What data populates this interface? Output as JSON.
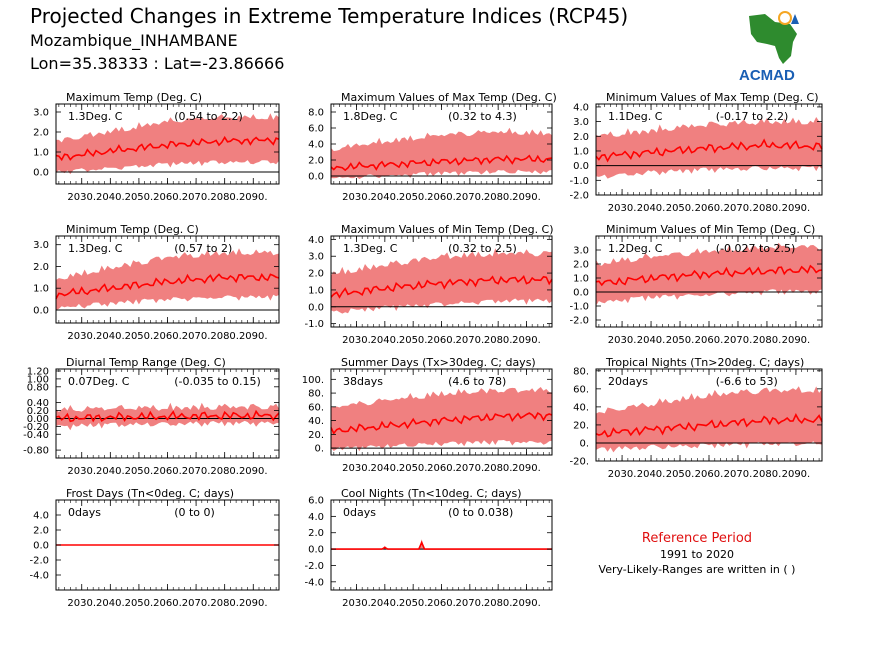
{
  "header": {
    "title": "Projected Changes in Extreme Temperature Indices (RCP45)",
    "region": "Mozambique_INHAMBANE",
    "coords": "Lon=35.38333 : Lat=-23.86666"
  },
  "logo": {
    "text": "ACMAD",
    "icon": "africa-map-icon"
  },
  "reference": {
    "title": "Reference Period",
    "years": "1991 to 2020",
    "note": "Very-Likely-Ranges are written in ( )"
  },
  "colors": {
    "band": "#f08080",
    "line": "#ff0000",
    "logo_green": "#2e8b2e",
    "logo_blue": "#1a5fb4",
    "logo_orange": "#f5a623"
  },
  "chart_data": [
    {
      "type": "line",
      "title": "Maximum Temp (Deg. C)",
      "change": "1.3Deg. C",
      "range": "(0.54 to 2.2)",
      "ylim": [
        -0.6,
        3.4
      ],
      "yticks": [
        0,
        1,
        2,
        3
      ],
      "ytick_labels": [
        "0.0",
        "1.0",
        "2.0",
        "3.0"
      ],
      "x_ticks": [
        "2030.",
        "2040.",
        "2050.",
        "2060.",
        "2070.",
        "2080.",
        "2090."
      ],
      "series": [
        {
          "x": [
            2021,
            2040,
            2060,
            2080,
            2099
          ],
          "values": [
            0.7,
            1.05,
            1.35,
            1.55,
            1.6
          ]
        },
        {
          "x": [
            2021,
            2040,
            2060,
            2080,
            2099
          ],
          "values": [
            0.1,
            0.3,
            0.5,
            0.6,
            0.6
          ]
        },
        {
          "x": [
            2021,
            2040,
            2060,
            2080,
            2099
          ],
          "values": [
            1.4,
            1.9,
            2.4,
            2.6,
            2.6
          ]
        }
      ]
    },
    {
      "type": "line",
      "title": "Maximum Values of Max Temp (Deg. C)",
      "change": "1.8Deg. C",
      "range": "(0.32 to 4.3)",
      "ylim": [
        -1,
        9
      ],
      "yticks": [
        0,
        2,
        4,
        6,
        8
      ],
      "ytick_labels": [
        "0.0",
        "2.0",
        "4.0",
        "6.0",
        "8.0"
      ],
      "x_ticks": [
        "2030.",
        "2040.",
        "2050.",
        "2060.",
        "2070.",
        "2080.",
        "2090."
      ],
      "series": [
        {
          "x": [
            2021,
            2040,
            2060,
            2080,
            2099
          ],
          "values": [
            1.0,
            1.4,
            1.8,
            2.1,
            2.1
          ]
        },
        {
          "x": [
            2021,
            2040,
            2060,
            2080,
            2099
          ],
          "values": [
            0.0,
            0.3,
            0.6,
            0.8,
            0.8
          ]
        },
        {
          "x": [
            2021,
            2040,
            2060,
            2080,
            2099
          ],
          "values": [
            3.0,
            4.0,
            4.8,
            5.2,
            5.0
          ]
        }
      ]
    },
    {
      "type": "line",
      "title": "Minimum Values of Max Temp (Deg. C)",
      "change": "1.1Deg. C",
      "range": "(-0.17 to 2.2)",
      "ylim": [
        -2,
        4.2
      ],
      "yticks": [
        -2,
        -1,
        0,
        1,
        2,
        3,
        4
      ],
      "ytick_labels": [
        "-2.0",
        "-1.0",
        "0.0",
        "1.0",
        "2.0",
        "3.0",
        "4.0"
      ],
      "x_ticks": [
        "2030.",
        "2040.",
        "2050.",
        "2060.",
        "2070.",
        "2080.",
        "2090."
      ],
      "series": [
        {
          "x": [
            2021,
            2040,
            2060,
            2080,
            2099
          ],
          "values": [
            0.6,
            0.9,
            1.2,
            1.4,
            1.3
          ]
        },
        {
          "x": [
            2021,
            2040,
            2060,
            2080,
            2099
          ],
          "values": [
            -0.6,
            -0.3,
            -0.1,
            0.0,
            0.0
          ]
        },
        {
          "x": [
            2021,
            2040,
            2060,
            2080,
            2099
          ],
          "values": [
            1.8,
            2.2,
            2.6,
            2.8,
            2.8
          ]
        }
      ]
    },
    {
      "type": "line",
      "title": "Minimum Temp (Deg. C)",
      "change": "1.3Deg. C",
      "range": "(0.57 to 2)",
      "ylim": [
        -0.6,
        3.4
      ],
      "yticks": [
        0,
        1,
        2,
        3
      ],
      "ytick_labels": [
        "0.0",
        "1.0",
        "2.0",
        "3.0"
      ],
      "x_ticks": [
        "2030.",
        "2040.",
        "2050.",
        "2060.",
        "2070.",
        "2080.",
        "2090."
      ],
      "series": [
        {
          "x": [
            2021,
            2040,
            2060,
            2080,
            2099
          ],
          "values": [
            0.7,
            1.0,
            1.3,
            1.5,
            1.5
          ]
        },
        {
          "x": [
            2021,
            2040,
            2060,
            2080,
            2099
          ],
          "values": [
            0.2,
            0.4,
            0.6,
            0.7,
            0.7
          ]
        },
        {
          "x": [
            2021,
            2040,
            2060,
            2080,
            2099
          ],
          "values": [
            1.3,
            1.8,
            2.3,
            2.5,
            2.5
          ]
        }
      ]
    },
    {
      "type": "line",
      "title": "Maximum Values of Min Temp (Deg. C)",
      "change": "1.3Deg. C",
      "range": "(0.32 to 2.5)",
      "ylim": [
        -1.2,
        4.2
      ],
      "yticks": [
        -1,
        0,
        1,
        2,
        3,
        4
      ],
      "ytick_labels": [
        "-1.0",
        "0.0",
        "1.0",
        "2.0",
        "3.0",
        "4.0"
      ],
      "x_ticks": [
        "2030.",
        "2040.",
        "2050.",
        "2060.",
        "2070.",
        "2080.",
        "2090."
      ],
      "series": [
        {
          "x": [
            2021,
            2040,
            2060,
            2080,
            2099
          ],
          "values": [
            0.7,
            1.1,
            1.4,
            1.6,
            1.6
          ]
        },
        {
          "x": [
            2021,
            2040,
            2060,
            2080,
            2099
          ],
          "values": [
            -0.2,
            0.1,
            0.3,
            0.5,
            0.5
          ]
        },
        {
          "x": [
            2021,
            2040,
            2060,
            2080,
            2099
          ],
          "values": [
            1.8,
            2.3,
            2.8,
            3.0,
            3.0
          ]
        }
      ]
    },
    {
      "type": "line",
      "title": "Minimum Values of Min Temp (Deg. C)",
      "change": "1.2Deg. C",
      "range": "(-0.027 to 2.5)",
      "ylim": [
        -2.5,
        4
      ],
      "yticks": [
        -2,
        -1,
        0,
        1,
        2,
        3
      ],
      "ytick_labels": [
        "-2.0",
        "-1.0",
        "0.0",
        "1.0",
        "2.0",
        "3.0"
      ],
      "x_ticks": [
        "2030.",
        "2040.",
        "2050.",
        "2060.",
        "2070.",
        "2080.",
        "2090."
      ],
      "series": [
        {
          "x": [
            2021,
            2040,
            2060,
            2080,
            2099
          ],
          "values": [
            0.6,
            1.0,
            1.3,
            1.5,
            1.6
          ]
        },
        {
          "x": [
            2021,
            2040,
            2060,
            2080,
            2099
          ],
          "values": [
            -0.6,
            -0.2,
            0.0,
            0.2,
            0.2
          ]
        },
        {
          "x": [
            2021,
            2040,
            2060,
            2080,
            2099
          ],
          "values": [
            1.8,
            2.3,
            2.7,
            3.0,
            3.0
          ]
        }
      ]
    },
    {
      "type": "line",
      "title": "Diurnal Temp Range (Deg. C)",
      "change": "0.07Deg. C",
      "range": "(-0.035 to 0.15)",
      "ylim": [
        -1.0,
        1.25
      ],
      "yticks": [
        -0.8,
        -0.4,
        -0.2,
        0,
        0.2,
        0.4,
        0.8,
        1.0,
        1.2
      ],
      "ytick_labels": [
        "-0.80",
        "-0.40",
        "-0.20",
        "0.00",
        "0.20",
        "0.40",
        "0.80",
        "1.00",
        "1.20"
      ],
      "x_ticks": [
        "2030.",
        "2040.",
        "2050.",
        "2060.",
        "2070.",
        "2080.",
        "2090."
      ],
      "series": [
        {
          "x": [
            2021,
            2040,
            2060,
            2080,
            2099
          ],
          "values": [
            0.0,
            0.03,
            0.05,
            0.07,
            0.07
          ]
        },
        {
          "x": [
            2021,
            2040,
            2060,
            2080,
            2099
          ],
          "values": [
            -0.15,
            -0.1,
            -0.08,
            -0.06,
            -0.06
          ]
        },
        {
          "x": [
            2021,
            2040,
            2060,
            2080,
            2099
          ],
          "values": [
            0.15,
            0.18,
            0.2,
            0.22,
            0.22
          ]
        }
      ]
    },
    {
      "type": "line",
      "title": "Summer Days (Tx>30deg. C; days)",
      "change": "38days",
      "range": "(4.6 to 78)",
      "ylim": [
        -10,
        115
      ],
      "yticks": [
        0,
        20,
        40,
        60,
        80,
        100
      ],
      "ytick_labels": [
        "0.",
        "20.",
        "40.",
        "60.",
        "80.",
        "100."
      ],
      "x_ticks": [
        "2030.",
        "2040.",
        "2050.",
        "2060.",
        "2070.",
        "2080.",
        "2090."
      ],
      "series": [
        {
          "x": [
            2021,
            2040,
            2060,
            2080,
            2099
          ],
          "values": [
            25,
            32,
            40,
            46,
            48
          ]
        },
        {
          "x": [
            2021,
            2040,
            2060,
            2080,
            2099
          ],
          "values": [
            2,
            6,
            10,
            12,
            12
          ]
        },
        {
          "x": [
            2021,
            2040,
            2060,
            2080,
            2099
          ],
          "values": [
            55,
            65,
            75,
            80,
            80
          ]
        }
      ]
    },
    {
      "type": "line",
      "title": "Tropical Nights (Tn>20deg. C; days)",
      "change": "20days",
      "range": "(-6.6 to 53)",
      "ylim": [
        -20,
        82
      ],
      "yticks": [
        -20,
        0,
        20,
        40,
        60,
        80
      ],
      "ytick_labels": [
        "-20.",
        "0.",
        "20.",
        "40.",
        "60.",
        "80."
      ],
      "x_ticks": [
        "2030.",
        "2040.",
        "2050.",
        "2060.",
        "2070.",
        "2080.",
        "2090."
      ],
      "series": [
        {
          "x": [
            2021,
            2040,
            2060,
            2080,
            2099
          ],
          "values": [
            10,
            15,
            20,
            25,
            26
          ]
        },
        {
          "x": [
            2021,
            2040,
            2060,
            2080,
            2099
          ],
          "values": [
            -5,
            -2,
            0,
            2,
            2
          ]
        },
        {
          "x": [
            2021,
            2040,
            2060,
            2080,
            2099
          ],
          "values": [
            30,
            40,
            50,
            55,
            55
          ]
        }
      ]
    },
    {
      "type": "line",
      "title": "Frost Days (Tn<0deg. C; days)",
      "change": "0days",
      "range": "(0 to 0)",
      "ylim": [
        -6,
        6
      ],
      "yticks": [
        -4,
        -2,
        0,
        2,
        4
      ],
      "ytick_labels": [
        "-4.0",
        "-2.0",
        "0.0",
        "2.0",
        "4.0"
      ],
      "x_ticks": [
        "2030.",
        "2040.",
        "2050.",
        "2060.",
        "2070.",
        "2080.",
        "2090."
      ],
      "series": [
        {
          "x": [
            2021,
            2099
          ],
          "values": [
            0,
            0
          ]
        },
        {
          "x": [
            2021,
            2099
          ],
          "values": [
            0,
            0
          ]
        },
        {
          "x": [
            2021,
            2099
          ],
          "values": [
            0,
            0
          ]
        }
      ]
    },
    {
      "type": "line",
      "title": "Cool Nights (Tn<10deg. C; days)",
      "change": "0days",
      "range": "(0 to 0.038)",
      "ylim": [
        -5,
        6
      ],
      "yticks": [
        -4,
        -2,
        0,
        2,
        4,
        6
      ],
      "ytick_labels": [
        "-4.0",
        "-2.0",
        "0.0",
        "2.0",
        "4.0",
        "6.0"
      ],
      "x_ticks": [
        "2030.",
        "2040.",
        "2050.",
        "2060.",
        "2070.",
        "2080.",
        "2090."
      ],
      "series": [
        {
          "x": [
            2021,
            2039,
            2040,
            2041,
            2052,
            2053,
            2054,
            2099
          ],
          "values": [
            0,
            0,
            0.2,
            0,
            0,
            0.8,
            0,
            0
          ]
        },
        {
          "x": [
            2021,
            2099
          ],
          "values": [
            0,
            0
          ]
        },
        {
          "x": [
            2021,
            2039,
            2040,
            2041,
            2052,
            2053,
            2054,
            2099
          ],
          "values": [
            0,
            0,
            0.4,
            0,
            0,
            1.2,
            0,
            0
          ]
        }
      ]
    }
  ]
}
